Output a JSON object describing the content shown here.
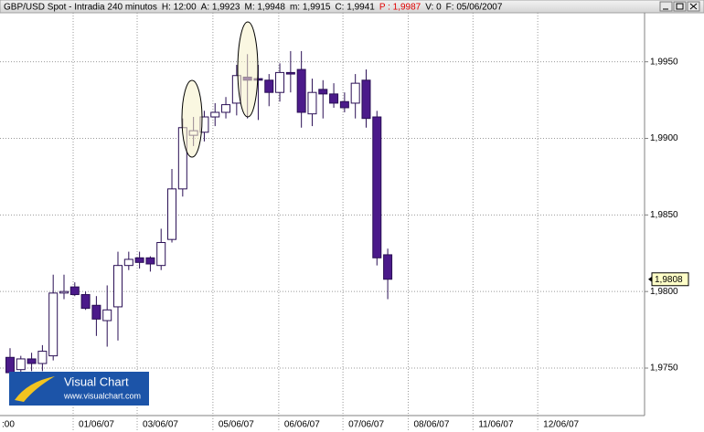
{
  "chart_data": {
    "type": "candlestick",
    "title": "GBP/USD Spot - Intradia 240 minutos",
    "header_fields": [
      {
        "text": "H: 12:00",
        "color": "#000000"
      },
      {
        "text": "A: 1,9923",
        "color": "#000000"
      },
      {
        "text": "M: 1,9948",
        "color": "#000000"
      },
      {
        "text": "m: 1,9915",
        "color": "#000000"
      },
      {
        "text": "C: 1,9941",
        "color": "#000000"
      },
      {
        "text": "P : 1,9987",
        "color": "#e00000"
      },
      {
        "text": "V: 0",
        "color": "#000000"
      },
      {
        "text": "F: 05/06/2007",
        "color": "#000000"
      }
    ],
    "logo": {
      "name": "Visual Chart",
      "url": "www.visualchart.com"
    },
    "x": [
      0,
      1,
      2,
      3,
      4,
      5,
      6,
      7,
      8,
      9,
      10,
      11,
      12,
      13,
      14,
      15,
      16,
      17,
      18,
      19,
      20,
      21,
      22,
      23,
      24,
      25,
      26,
      27,
      28,
      29,
      30,
      31,
      32,
      33,
      34,
      35
    ],
    "open": [
      1.9757,
      1.9749,
      1.9756,
      1.9753,
      1.9758,
      1.9799,
      1.9803,
      1.9798,
      1.9791,
      1.9781,
      1.979,
      1.9817,
      1.9822,
      1.9822,
      1.9817,
      1.9834,
      1.9867,
      1.9902,
      1.9904,
      1.9914,
      1.9917,
      1.9923,
      1.994,
      1.9939,
      1.9938,
      1.993,
      1.9943,
      1.9945,
      1.9916,
      1.9932,
      1.9929,
      1.9924,
      1.9923,
      1.9938,
      1.9914,
      1.9824
    ],
    "high": [
      1.9763,
      1.9758,
      1.976,
      1.9765,
      1.9811,
      1.9811,
      1.9806,
      1.98,
      1.9797,
      1.9804,
      1.9826,
      1.9826,
      1.9826,
      1.9823,
      1.9841,
      1.988,
      1.9913,
      1.9914,
      1.9918,
      1.9923,
      1.9927,
      1.9948,
      1.9955,
      1.9948,
      1.9942,
      1.9949,
      1.9957,
      1.9957,
      1.9939,
      1.9938,
      1.9936,
      1.993,
      1.9942,
      1.9945,
      1.9918,
      1.9828
    ],
    "low": [
      1.9746,
      1.9747,
      1.9748,
      1.9748,
      1.9755,
      1.9795,
      1.9797,
      1.9788,
      1.9771,
      1.9764,
      1.9768,
      1.9814,
      1.9815,
      1.9813,
      1.9814,
      1.9832,
      1.9862,
      1.9895,
      1.9898,
      1.9908,
      1.9913,
      1.9915,
      1.9913,
      1.9912,
      1.9921,
      1.9924,
      1.993,
      1.9907,
      1.9908,
      1.9913,
      1.992,
      1.9917,
      1.9913,
      1.9907,
      1.9817,
      1.9795
    ],
    "close": [
      1.9747,
      1.9756,
      1.9753,
      1.9761,
      1.9799,
      1.98,
      1.9798,
      1.9789,
      1.9782,
      1.9788,
      1.9817,
      1.9821,
      1.9819,
      1.9818,
      1.9832,
      1.9867,
      1.9907,
      1.9905,
      1.9914,
      1.9917,
      1.9922,
      1.9941,
      1.9938,
      1.9938,
      1.993,
      1.9943,
      1.9942,
      1.9917,
      1.993,
      1.9929,
      1.9923,
      1.992,
      1.9936,
      1.9913,
      1.9822,
      1.9808
    ],
    "up_color": "#ffffff",
    "down_color": "#4b1a8a",
    "edge_color": "#2a0f55",
    "xlim": [
      -0.93,
      58.8
    ],
    "xticks": [
      {
        "value": -1.27,
        "label": ":00"
      },
      {
        "value": 5.85,
        "label": "01/06/07"
      },
      {
        "value": 11.78,
        "label": "03/06/07"
      },
      {
        "value": 18.8,
        "label": "05/06/07"
      },
      {
        "value": 24.9,
        "label": "06/06/07"
      },
      {
        "value": 30.85,
        "label": "07/06/07"
      },
      {
        "value": 36.9,
        "label": "08/06/07"
      },
      {
        "value": 42.9,
        "label": "11/06/07"
      },
      {
        "value": 48.9,
        "label": "12/06/07"
      }
    ],
    "ylim": [
      1.9719,
      1.9982
    ],
    "yticks": [
      {
        "value": 1.975,
        "label": "1,9750"
      },
      {
        "value": 1.98,
        "label": "1,9800"
      },
      {
        "value": 1.985,
        "label": "1,9850"
      },
      {
        "value": 1.99,
        "label": "1,9900"
      },
      {
        "value": 1.995,
        "label": "1,9950"
      }
    ],
    "last_value": {
      "value": 1.9808,
      "label": "1,9808"
    },
    "grid": true
  }
}
